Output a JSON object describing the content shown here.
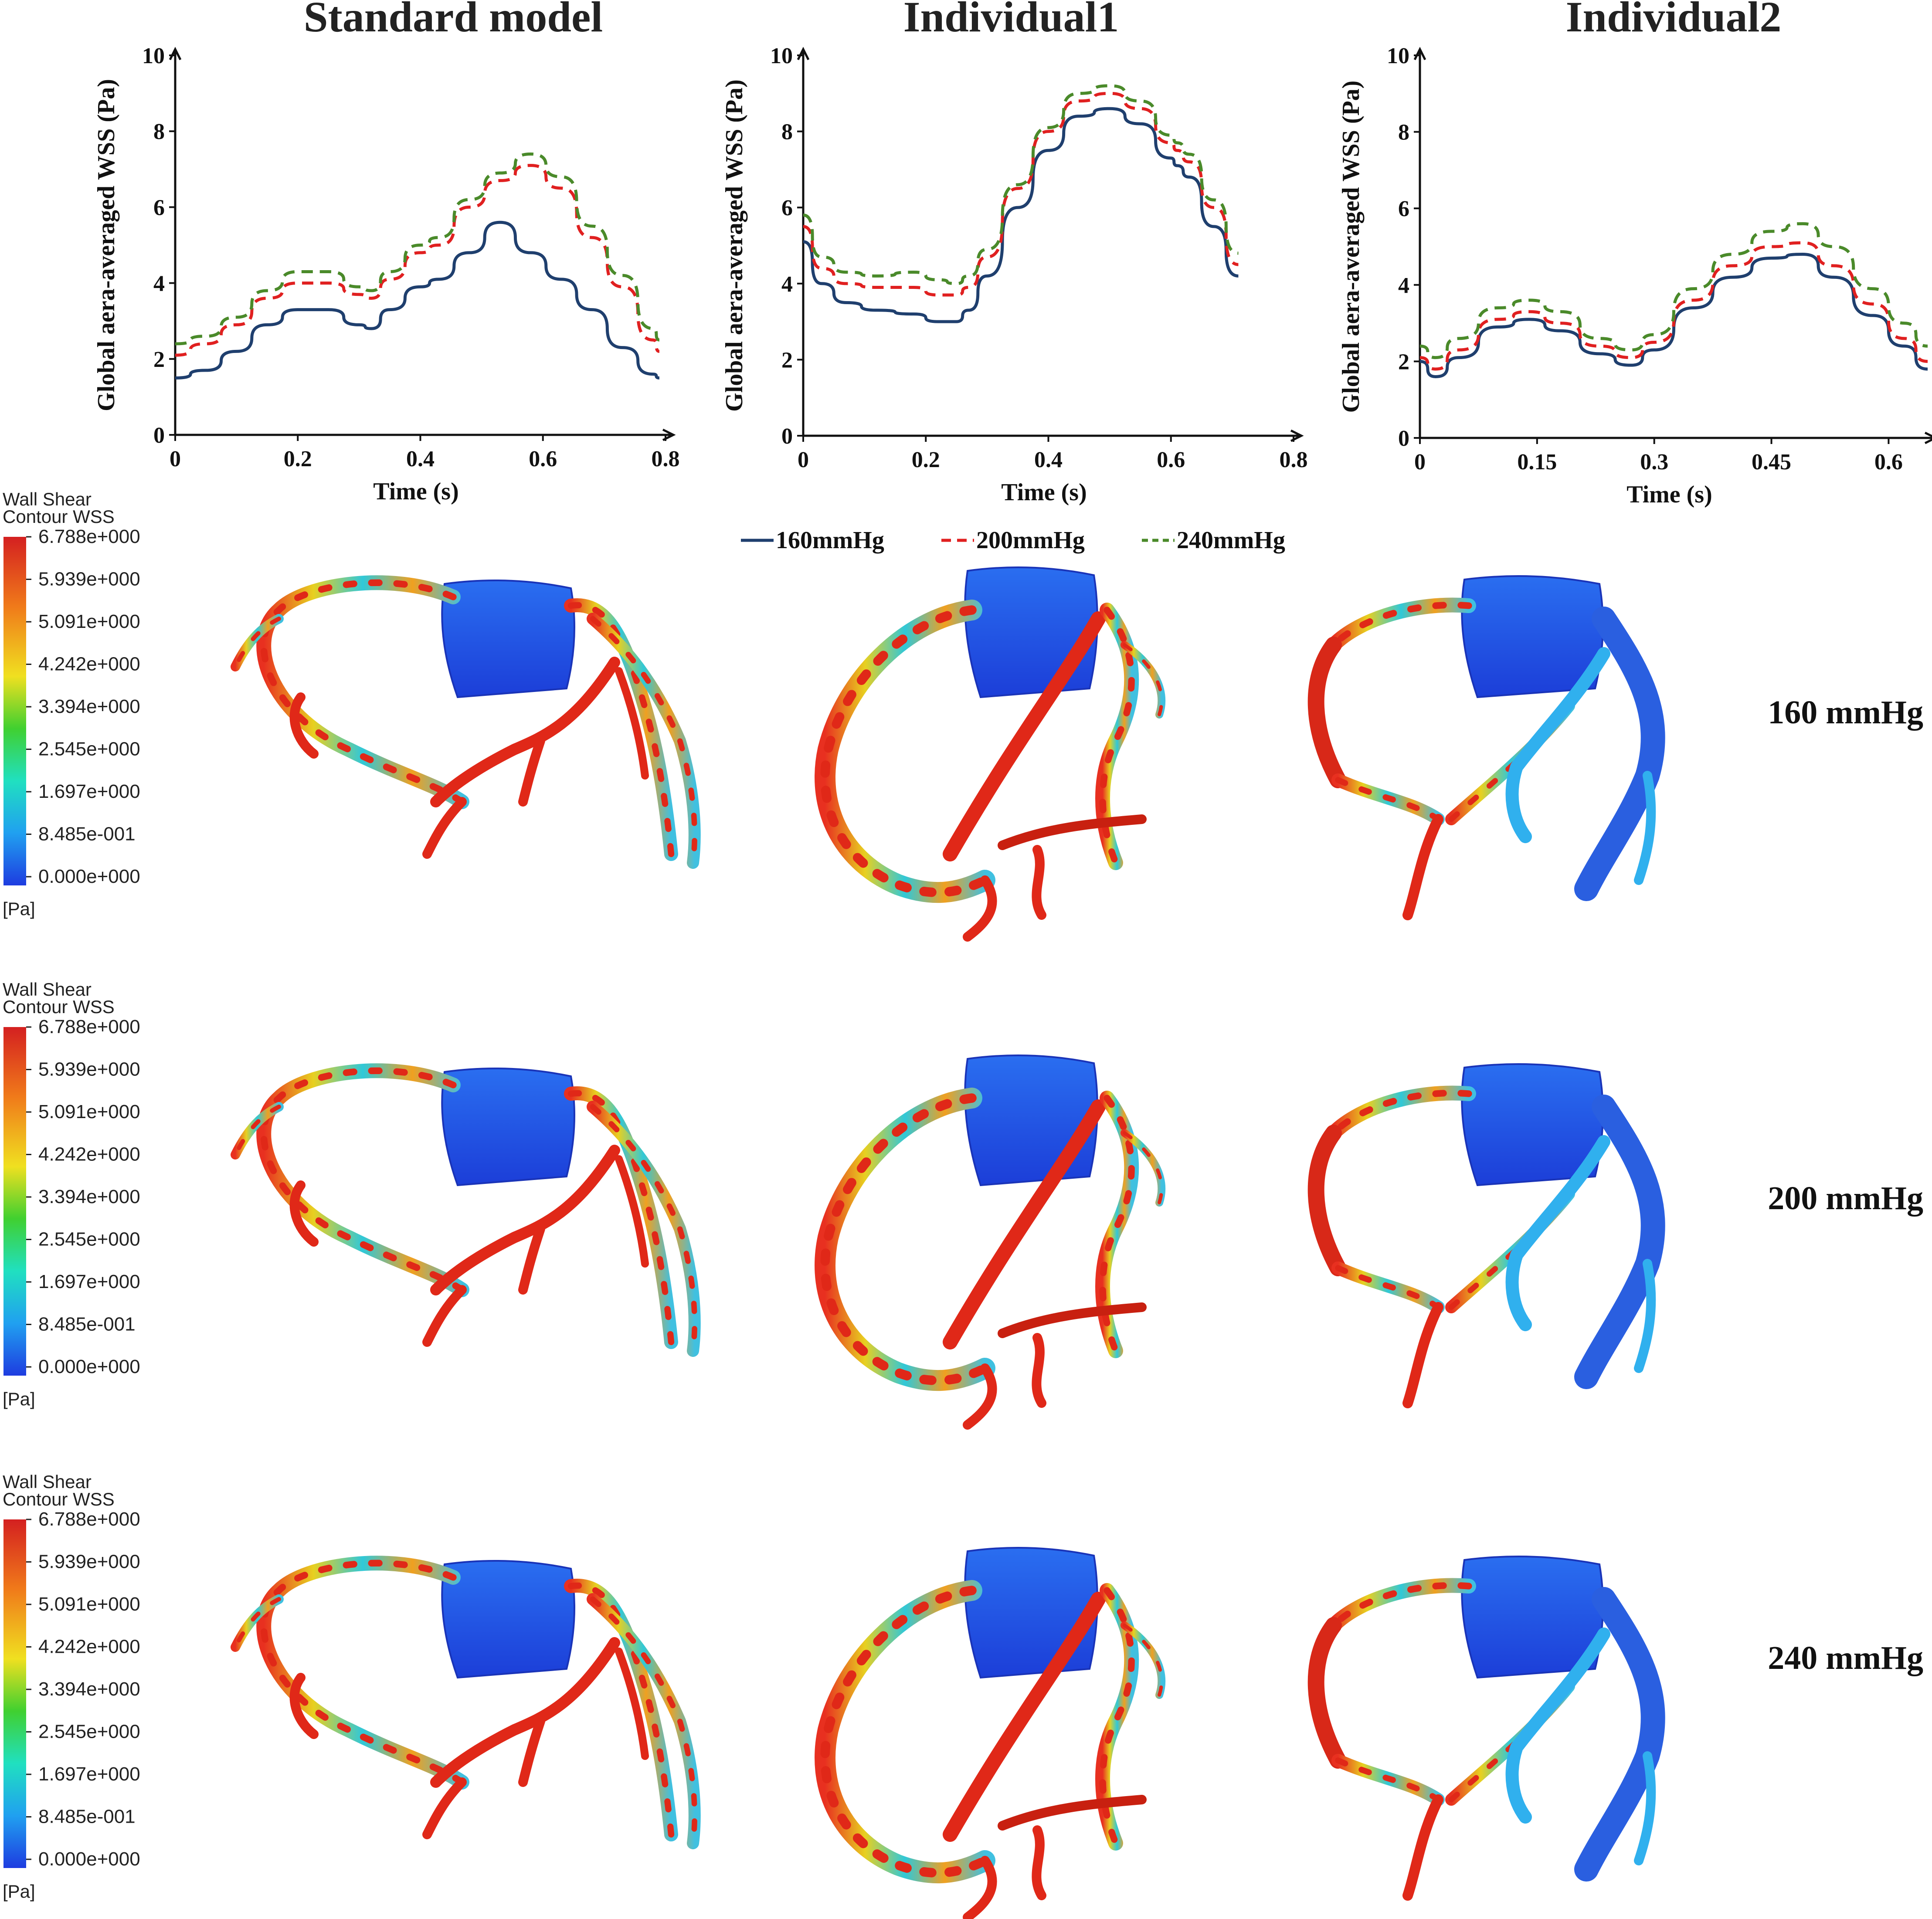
{
  "column_titles": [
    "Standard model",
    "Individual1",
    "Individual2"
  ],
  "chart_data": [
    {
      "type": "line",
      "title": "Standard model",
      "xlabel": "Time (s)",
      "ylabel": "Global aera-averaged WSS (Pa)",
      "xlim": [
        0,
        0.8
      ],
      "ylim": [
        0,
        10
      ],
      "xticks": [
        "0",
        "0.2",
        "0.4",
        "0.6",
        "0.8"
      ],
      "yticks": [
        "0",
        "2",
        "4",
        "6",
        "8",
        "10"
      ],
      "x": [
        0,
        0.05,
        0.1,
        0.15,
        0.2,
        0.25,
        0.3,
        0.32,
        0.35,
        0.4,
        0.43,
        0.48,
        0.53,
        0.58,
        0.63,
        0.68,
        0.73,
        0.78,
        0.79
      ],
      "series": [
        {
          "name": "160mmHg",
          "color": "#1f3f6e",
          "dash": "solid",
          "values": [
            1.5,
            1.7,
            2.2,
            2.9,
            3.3,
            3.3,
            2.9,
            2.8,
            3.3,
            3.9,
            4.1,
            4.8,
            5.6,
            4.8,
            4.1,
            3.3,
            2.3,
            1.6,
            1.5
          ]
        },
        {
          "name": "200mmHg",
          "color": "#e02020",
          "dash": "dashed",
          "values": [
            2.1,
            2.4,
            2.9,
            3.6,
            4.0,
            4.0,
            3.7,
            3.6,
            4.1,
            4.8,
            5.0,
            6.0,
            6.7,
            7.1,
            6.5,
            5.2,
            3.9,
            2.5,
            2.2
          ]
        },
        {
          "name": "240mmHg",
          "color": "#4a8a2a",
          "dash": "dashed",
          "values": [
            2.4,
            2.6,
            3.1,
            3.8,
            4.3,
            4.3,
            3.9,
            3.8,
            4.3,
            5.0,
            5.2,
            6.2,
            6.9,
            7.4,
            6.8,
            5.5,
            4.2,
            2.8,
            2.5
          ]
        }
      ]
    },
    {
      "type": "line",
      "title": "Individual1",
      "xlabel": "Time (s)",
      "ylabel": "Global aera-averaged WSS (Pa)",
      "xlim": [
        0,
        0.8
      ],
      "ylim": [
        0,
        10
      ],
      "xticks": [
        "0",
        "0.2",
        "0.4",
        "0.6",
        "0.8"
      ],
      "yticks": [
        "0",
        "2",
        "4",
        "6",
        "8",
        "10"
      ],
      "x": [
        0,
        0.03,
        0.07,
        0.12,
        0.18,
        0.22,
        0.25,
        0.27,
        0.3,
        0.35,
        0.4,
        0.45,
        0.5,
        0.55,
        0.6,
        0.61,
        0.63,
        0.67,
        0.71
      ],
      "series": [
        {
          "name": "160mmHg",
          "color": "#1f3f6e",
          "dash": "solid",
          "values": [
            5.1,
            4.0,
            3.5,
            3.3,
            3.2,
            3.0,
            3.0,
            3.3,
            4.2,
            6.0,
            7.5,
            8.4,
            8.6,
            8.2,
            7.3,
            7.1,
            6.8,
            5.5,
            4.2
          ]
        },
        {
          "name": "200mmHg",
          "color": "#e02020",
          "dash": "dashed",
          "values": [
            5.5,
            4.4,
            4.0,
            3.9,
            3.9,
            3.7,
            3.7,
            3.9,
            4.7,
            6.5,
            8.0,
            8.8,
            9.0,
            8.6,
            7.7,
            7.5,
            7.2,
            6.0,
            4.5
          ]
        },
        {
          "name": "240mmHg",
          "color": "#4a8a2a",
          "dash": "dashed",
          "values": [
            5.8,
            4.7,
            4.3,
            4.2,
            4.3,
            4.1,
            4.0,
            4.2,
            4.9,
            6.6,
            8.1,
            9.0,
            9.2,
            8.8,
            7.9,
            7.7,
            7.4,
            6.2,
            4.8
          ]
        }
      ]
    },
    {
      "type": "line",
      "title": "Individual2",
      "xlabel": "Time (s)",
      "ylabel": "Global aera-averaged WSS (Pa)",
      "xlim": [
        0,
        0.65
      ],
      "ylim": [
        0,
        10
      ],
      "xticks": [
        "0",
        "0.15",
        "0.3",
        "0.45",
        "0.6"
      ],
      "xtick_values": [
        0,
        0.15,
        0.3,
        0.45,
        0.6
      ],
      "yticks": [
        "0",
        "2",
        "4",
        "6",
        "8",
        "10"
      ],
      "x": [
        0,
        0.02,
        0.05,
        0.1,
        0.14,
        0.18,
        0.23,
        0.27,
        0.3,
        0.35,
        0.4,
        0.45,
        0.49,
        0.53,
        0.58,
        0.62,
        0.65
      ],
      "series": [
        {
          "name": "160mmHg",
          "color": "#1f3f6e",
          "dash": "solid",
          "values": [
            2.0,
            1.6,
            2.1,
            2.9,
            3.1,
            2.8,
            2.2,
            1.9,
            2.3,
            3.4,
            4.2,
            4.7,
            4.8,
            4.2,
            3.2,
            2.4,
            1.8
          ]
        },
        {
          "name": "200mmHg",
          "color": "#e02020",
          "dash": "dashed",
          "values": [
            2.1,
            1.8,
            2.3,
            3.1,
            3.3,
            3.0,
            2.4,
            2.1,
            2.5,
            3.6,
            4.5,
            5.0,
            5.1,
            4.5,
            3.5,
            2.6,
            2.0
          ]
        },
        {
          "name": "240mmHg",
          "color": "#4a8a2a",
          "dash": "dashed",
          "values": [
            2.4,
            2.1,
            2.6,
            3.4,
            3.6,
            3.3,
            2.6,
            2.3,
            2.7,
            3.9,
            4.8,
            5.4,
            5.6,
            5.0,
            3.9,
            3.0,
            2.4
          ]
        }
      ]
    }
  ],
  "legend": [
    "160mmHg",
    "200mmHg",
    "240mmHg"
  ],
  "row_labels": [
    "160 mmHg",
    "200 mmHg",
    "240 mmHg"
  ],
  "colorbar": {
    "title_line1": "Wall Shear",
    "title_line2": "Contour WSS",
    "ticks": [
      "6.788e+000",
      "5.939e+000",
      "5.091e+000",
      "4.242e+000",
      "3.394e+000",
      "2.545e+000",
      "1.697e+000",
      "8.485e-001",
      "0.000e+000"
    ],
    "unit": "[Pa]",
    "colors": [
      "#d42020",
      "#f07a1a",
      "#f0e020",
      "#40d030",
      "#20e0c0",
      "#20a0f0",
      "#1e3ce0"
    ]
  }
}
